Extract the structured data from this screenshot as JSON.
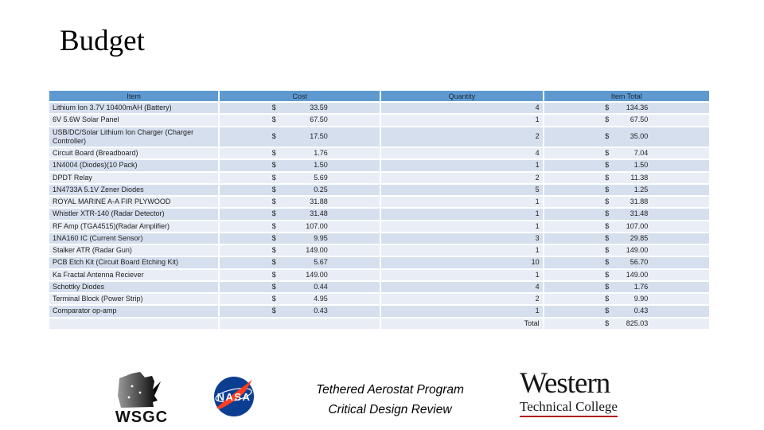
{
  "title": "Budget",
  "currency": "$",
  "table": {
    "headers": [
      "Item",
      "Cost",
      "Quantity",
      "Item Total"
    ],
    "rows": [
      {
        "item": "Lithium Ion 3.7V 10400mAH (Battery)",
        "cost": "33.59",
        "qty": "4",
        "total": "134.36"
      },
      {
        "item": "6V 5.6W Solar Panel",
        "cost": "67.50",
        "qty": "1",
        "total": "67.50"
      },
      {
        "item": "USB/DC/Solar Lithium Ion Charger (Charger Controller)",
        "cost": "17.50",
        "qty": "2",
        "total": "35.00"
      },
      {
        "item": "Circuit Board (Breadboard)",
        "cost": "1.76",
        "qty": "4",
        "total": "7.04"
      },
      {
        "item": "1N4004 (Diodes)(10 Pack)",
        "cost": "1.50",
        "qty": "1",
        "total": "1.50"
      },
      {
        "item": "DPDT Relay",
        "cost": "5.69",
        "qty": "2",
        "total": "11.38"
      },
      {
        "item": "1N4733A 5.1V Zener Diodes",
        "cost": "0.25",
        "qty": "5",
        "total": "1.25"
      },
      {
        "item": "ROYAL MARINE A-A FIR PLYWOOD",
        "cost": "31.88",
        "qty": "1",
        "total": "31.88"
      },
      {
        "item": "Whistler XTR-140 (Radar Detector)",
        "cost": "31.48",
        "qty": "1",
        "total": "31.48"
      },
      {
        "item": "RF Amp (TGA4515)(Radar Amplifier)",
        "cost": "107.00",
        "qty": "1",
        "total": "107.00"
      },
      {
        "item": "1NA160 IC (Current Sensor)",
        "cost": "9.95",
        "qty": "3",
        "total": "29.85"
      },
      {
        "item": "Stalker ATR (Radar Gun)",
        "cost": "149.00",
        "qty": "1",
        "total": "149.00"
      },
      {
        "item": "PCB Etch Kit (Circuit Board Etching Kit)",
        "cost": "5.67",
        "qty": "10",
        "total": "56.70"
      },
      {
        "item": "Ka Fractal Antenna Reciever",
        "cost": "149.00",
        "qty": "1",
        "total": "149.00"
      },
      {
        "item": "Schottky Diodes",
        "cost": "0.44",
        "qty": "4",
        "total": "1.76"
      },
      {
        "item": "Terminal Block (Power Strip)",
        "cost": "4.95",
        "qty": "2",
        "total": "9.90"
      },
      {
        "item": "Comparator op-amp",
        "cost": "0.43",
        "qty": "1",
        "total": "0.43"
      },
      {
        "item": "",
        "cost": "",
        "qty": "Total",
        "total": "825.03",
        "is_total": true
      }
    ],
    "colors": {
      "header_bg": "#5e9ad0",
      "band_dark": "#d5dfee",
      "band_light": "#e9eef6"
    }
  },
  "footer": {
    "wsgc_label": "WSGC",
    "nasa_label": "NASA",
    "caption_line1": "Tethered Aerostat Program",
    "caption_line2": "Critical Design Review",
    "western_line1": "Western",
    "western_line2": "Technical College",
    "western_underline_color": "#b01218",
    "nasa_blue": "#0b3d91",
    "nasa_red": "#fc3d21"
  }
}
